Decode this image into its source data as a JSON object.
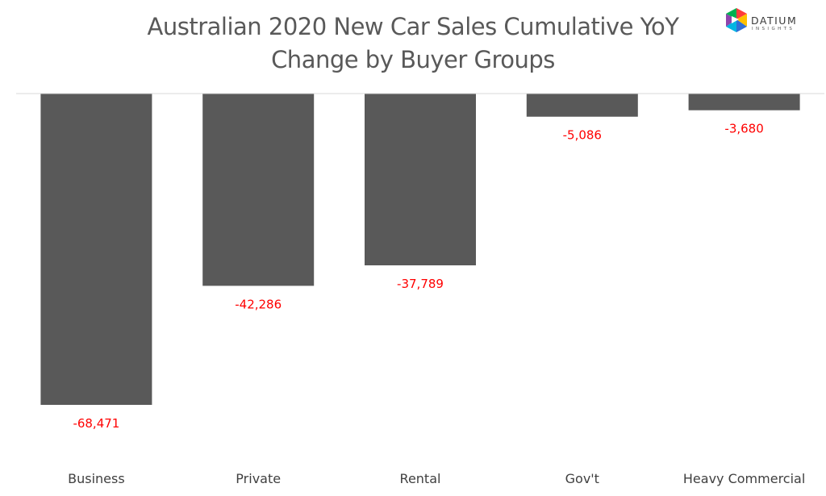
{
  "chart_data": {
    "type": "bar",
    "title_lines": [
      "Australian 2020 New Car Sales Cumulative YoY",
      "Change by Buyer Groups"
    ],
    "categories": [
      "Business",
      "Private",
      "Rental",
      "Gov't",
      "Heavy Commercial"
    ],
    "values": [
      -68471,
      -42286,
      -37789,
      -5086,
      -3680
    ],
    "data_labels": [
      "-68,471",
      "-42,286",
      "-37,789",
      "-5,086",
      "-3,680"
    ],
    "xlabel": "",
    "ylabel": "",
    "ylim": [
      -68471,
      0
    ],
    "grid": false,
    "legend": "none",
    "colors": {
      "bar": "#595959",
      "data_label": "#ff0000",
      "category_label": "#404040",
      "axis": "#d9d9d9",
      "title": "#595959"
    }
  },
  "logo": {
    "brand": "DATIUM",
    "sub": "INSIGHTS",
    "colors": [
      "#ff3c3c",
      "#ffc000",
      "#2f6fd6",
      "#00b5e2",
      "#8e44ad",
      "#00b050"
    ]
  }
}
